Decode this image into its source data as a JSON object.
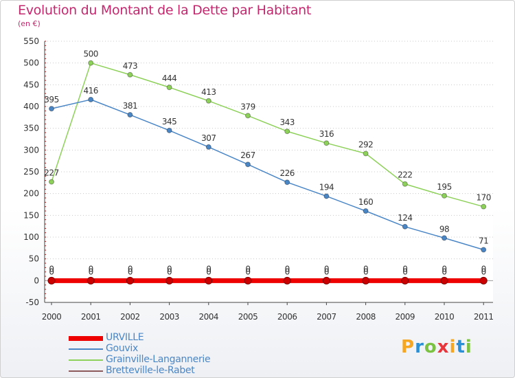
{
  "header": {
    "title": "Evolution du Montant de la Dette par Habitant",
    "subtitle": "(en €)"
  },
  "brand": {
    "name": "Proxiti",
    "letter_colors": [
      "#f5a623",
      "#2b8fd6",
      "#7cc242",
      "#e8363d",
      "#f5a623",
      "#2b8fd6",
      "#7cc242"
    ]
  },
  "chart_data": {
    "type": "line",
    "title": "Evolution du Montant de la Dette par Habitant",
    "subtitle": "(en €)",
    "xlabel": "",
    "ylabel": "",
    "x": [
      "2000",
      "2001",
      "2002",
      "2003",
      "2004",
      "2005",
      "2006",
      "2007",
      "2008",
      "2009",
      "2010",
      "2011"
    ],
    "ylim": [
      -50,
      550
    ],
    "yticks": [
      -50,
      0,
      50,
      100,
      150,
      200,
      250,
      300,
      350,
      400,
      450,
      500,
      550
    ],
    "grid": "horizontal dotted",
    "legend_position": "bottom-left",
    "series": [
      {
        "name": "URVILLE",
        "color": "#ee0000",
        "values": [
          0,
          0,
          0,
          0,
          0,
          0,
          0,
          0,
          0,
          0,
          0,
          0
        ]
      },
      {
        "name": "Gouvix",
        "color": "#4a86c6",
        "values": [
          395,
          416,
          381,
          345,
          307,
          267,
          226,
          194,
          160,
          124,
          98,
          71
        ]
      },
      {
        "name": "Grainville-Langannerie",
        "color": "#8ed15a",
        "values": [
          227,
          500,
          473,
          444,
          413,
          379,
          343,
          316,
          292,
          222,
          195,
          170
        ]
      },
      {
        "name": "Bretteville-le-Rabet",
        "color": "#8c5a5a",
        "values": [
          0,
          0,
          0,
          0,
          0,
          0,
          0,
          0,
          0,
          0,
          0,
          0
        ]
      }
    ]
  }
}
